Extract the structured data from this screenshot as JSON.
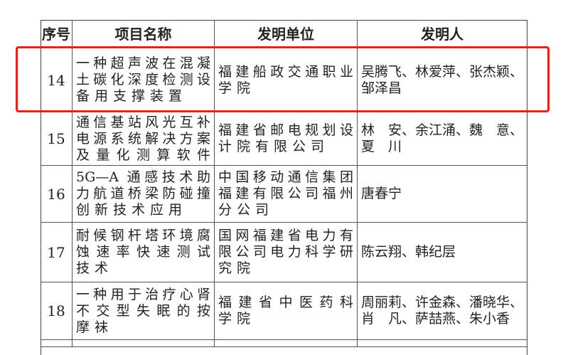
{
  "headers": [
    "序号",
    "项目名称",
    "发明单位",
    "发明人"
  ],
  "rows": [
    {
      "no": "14",
      "name": [
        "一种超声波在混凝",
        "土碳化深度检测设",
        "备用支撑装置"
      ],
      "unit": [
        "福建船政交通职业",
        "学院"
      ],
      "inventors": [
        "吴腾飞、林爱萍、张杰颖、",
        "邹泽昌"
      ],
      "highlighted": true
    },
    {
      "no": "15",
      "name": [
        "通信基站风光互补",
        "电源系统解决方案",
        "及量化测算软件"
      ],
      "unit": [
        "福建省邮电规划设",
        "计院有限公司"
      ],
      "inventors": [
        "林　安、余江涌、魏　意、",
        "夏　川"
      ]
    },
    {
      "no": "16",
      "name": [
        "5G—A 通感技术助",
        "力航道桥梁防碰撞",
        "创新技术应用"
      ],
      "unit": [
        "中国移动通信集团",
        "福建有限公司福州",
        "分公司"
      ],
      "inventors": [
        "唐春宁"
      ]
    },
    {
      "no": "17",
      "name": [
        "耐候钢杆塔环境腐",
        "蚀速率快速测试",
        "技术"
      ],
      "unit": [
        "国网福建省电力有",
        "限公司电力科学研",
        "究院"
      ],
      "inventors": [
        "陈云翔、韩纪层"
      ]
    },
    {
      "no": "18",
      "name": [
        "一种用于治疗心肾",
        "不交型失眠的按",
        "摩袜"
      ],
      "unit": [
        "福建省中医药科",
        "学院"
      ],
      "inventors": [
        "周丽莉、许金森、潘晓华、",
        "肖　凡、萨喆燕、朱小香"
      ]
    }
  ],
  "highlight_color": "#e8201f"
}
